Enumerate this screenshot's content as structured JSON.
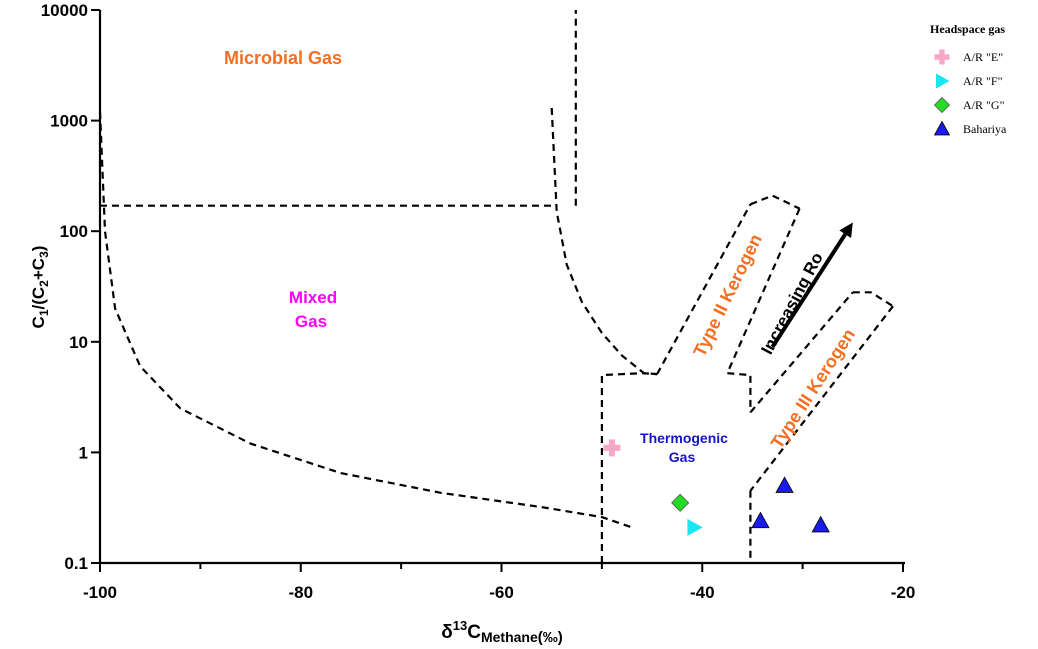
{
  "chart_data": {
    "type": "scatter",
    "title": "",
    "xlabel": {
      "base": "δ",
      "sup": "13",
      "main": "C",
      "sub": "Methane",
      "unit": "(‰)"
    },
    "ylabel": {
      "base": "C",
      "sub1": "1",
      "mid": "/(C",
      "sub2": "2",
      "plus": "+C",
      "sub3": "3",
      "close": ")"
    },
    "xlim": [
      -100,
      -20
    ],
    "ylim": [
      0.1,
      10000
    ],
    "yscale": "log",
    "x_ticks": [
      "-100",
      "-80",
      "-60",
      "-40",
      "-20"
    ],
    "y_ticks": [
      "0.1",
      "1",
      "10",
      "100",
      "1000",
      "10000"
    ],
    "regions": [
      {
        "name": "microbial",
        "text": "Microbial Gas",
        "color": "#f36f21"
      },
      {
        "name": "mixed",
        "lines": [
          "Mixed",
          "Gas"
        ],
        "color": "#ff00ff"
      },
      {
        "name": "thermogenic",
        "lines": [
          "Thermogenic",
          "Gas"
        ],
        "color": "#1414c8"
      },
      {
        "name": "type2",
        "text": "Type II Kerogen",
        "color": "#f36f21"
      },
      {
        "name": "type3",
        "text": "Type III Kerogen",
        "color": "#f36f21"
      }
    ],
    "arrow_label": "Increasing Ro",
    "legend": {
      "title": "Headspace gas",
      "placement": "top-right",
      "entries": [
        {
          "name": "A/R \"E\"",
          "marker": "cross",
          "color": "#f7a8c8"
        },
        {
          "name": "A/R \"F\"",
          "marker": "triangle-right",
          "color": "#19e6f0"
        },
        {
          "name": "A/R \"G\"",
          "marker": "diamond",
          "color": "#22dd22"
        },
        {
          "name": "Bahariya",
          "marker": "triangle-up",
          "color": "#1a1aee"
        }
      ]
    },
    "series": [
      {
        "name": "A/R \"E\"",
        "marker": "cross",
        "color": "#f7a8c8",
        "points": [
          {
            "x": -49,
            "y": 1.1
          }
        ]
      },
      {
        "name": "A/R \"F\"",
        "marker": "triangle-right",
        "color": "#19e6f0",
        "points": [
          {
            "x": -40.8,
            "y": 0.21
          }
        ]
      },
      {
        "name": "A/R \"G\"",
        "marker": "diamond",
        "color": "#22dd22",
        "points": [
          {
            "x": -42.2,
            "y": 0.35
          }
        ]
      },
      {
        "name": "Bahariya",
        "marker": "triangle-up",
        "color": "#1a1aee",
        "points": [
          {
            "x": -34.2,
            "y": 0.24
          },
          {
            "x": -31.8,
            "y": 0.5
          },
          {
            "x": -28.2,
            "y": 0.22
          }
        ]
      }
    ],
    "boundaries": [
      {
        "name": "microbial-horizontal",
        "points": [
          [
            -100,
            170
          ],
          [
            -54.5,
            170
          ]
        ]
      },
      {
        "name": "microbial-vertical",
        "points": [
          [
            -52.6,
            170
          ],
          [
            -52.6,
            10000
          ]
        ]
      },
      {
        "name": "mixed-left-curve",
        "points": [
          [
            -100,
            1200
          ],
          [
            -99.5,
            100
          ],
          [
            -98.5,
            20
          ],
          [
            -96,
            6
          ],
          [
            -92,
            2.5
          ],
          [
            -85,
            1.2
          ],
          [
            -76,
            0.65
          ],
          [
            -66,
            0.43
          ],
          [
            -56,
            0.32
          ],
          [
            -50,
            0.26
          ],
          [
            -47,
            0.21
          ]
        ]
      },
      {
        "name": "mixed-right-curve",
        "points": [
          [
            -55,
            1300
          ],
          [
            -54.5,
            150
          ],
          [
            -53.5,
            50
          ],
          [
            -52,
            23
          ],
          [
            -50,
            12
          ],
          [
            -48,
            7.5
          ],
          [
            -45.8,
            5.2
          ],
          [
            -44.5,
            5.1
          ]
        ]
      },
      {
        "name": "thermogenic-left",
        "points": [
          [
            -50,
            0.1
          ],
          [
            -50,
            5
          ],
          [
            -46,
            5.2
          ],
          [
            -44.5,
            5.1
          ]
        ]
      },
      {
        "name": "thermogenic-right-top",
        "points": [
          [
            -37.5,
            5.2
          ],
          [
            -35.2,
            5
          ],
          [
            -35.2,
            2.3
          ]
        ]
      },
      {
        "name": "thermogenic-right-bottom",
        "points": [
          [
            -35.2,
            0.45
          ],
          [
            -35.2,
            0.1
          ]
        ]
      },
      {
        "name": "type2-left",
        "points": [
          [
            -44.5,
            5.1
          ],
          [
            -35.2,
            175
          ]
        ]
      },
      {
        "name": "type2-top",
        "points": [
          [
            -35.2,
            175
          ],
          [
            -33,
            210
          ],
          [
            -30.3,
            160
          ]
        ]
      },
      {
        "name": "type2-right",
        "points": [
          [
            -30.3,
            160
          ],
          [
            -37.5,
            5.2
          ]
        ]
      },
      {
        "name": "type3-left",
        "points": [
          [
            -35.2,
            2.3
          ],
          [
            -25,
            28
          ]
        ]
      },
      {
        "name": "type3-top",
        "points": [
          [
            -25,
            28
          ],
          [
            -23.2,
            28
          ],
          [
            -21,
            21
          ]
        ]
      },
      {
        "name": "type3-right",
        "points": [
          [
            -21,
            21
          ],
          [
            -35.2,
            0.45
          ]
        ]
      }
    ],
    "arrow": {
      "from": [
        -33,
        9
      ],
      "to": [
        -25,
        120
      ]
    }
  }
}
